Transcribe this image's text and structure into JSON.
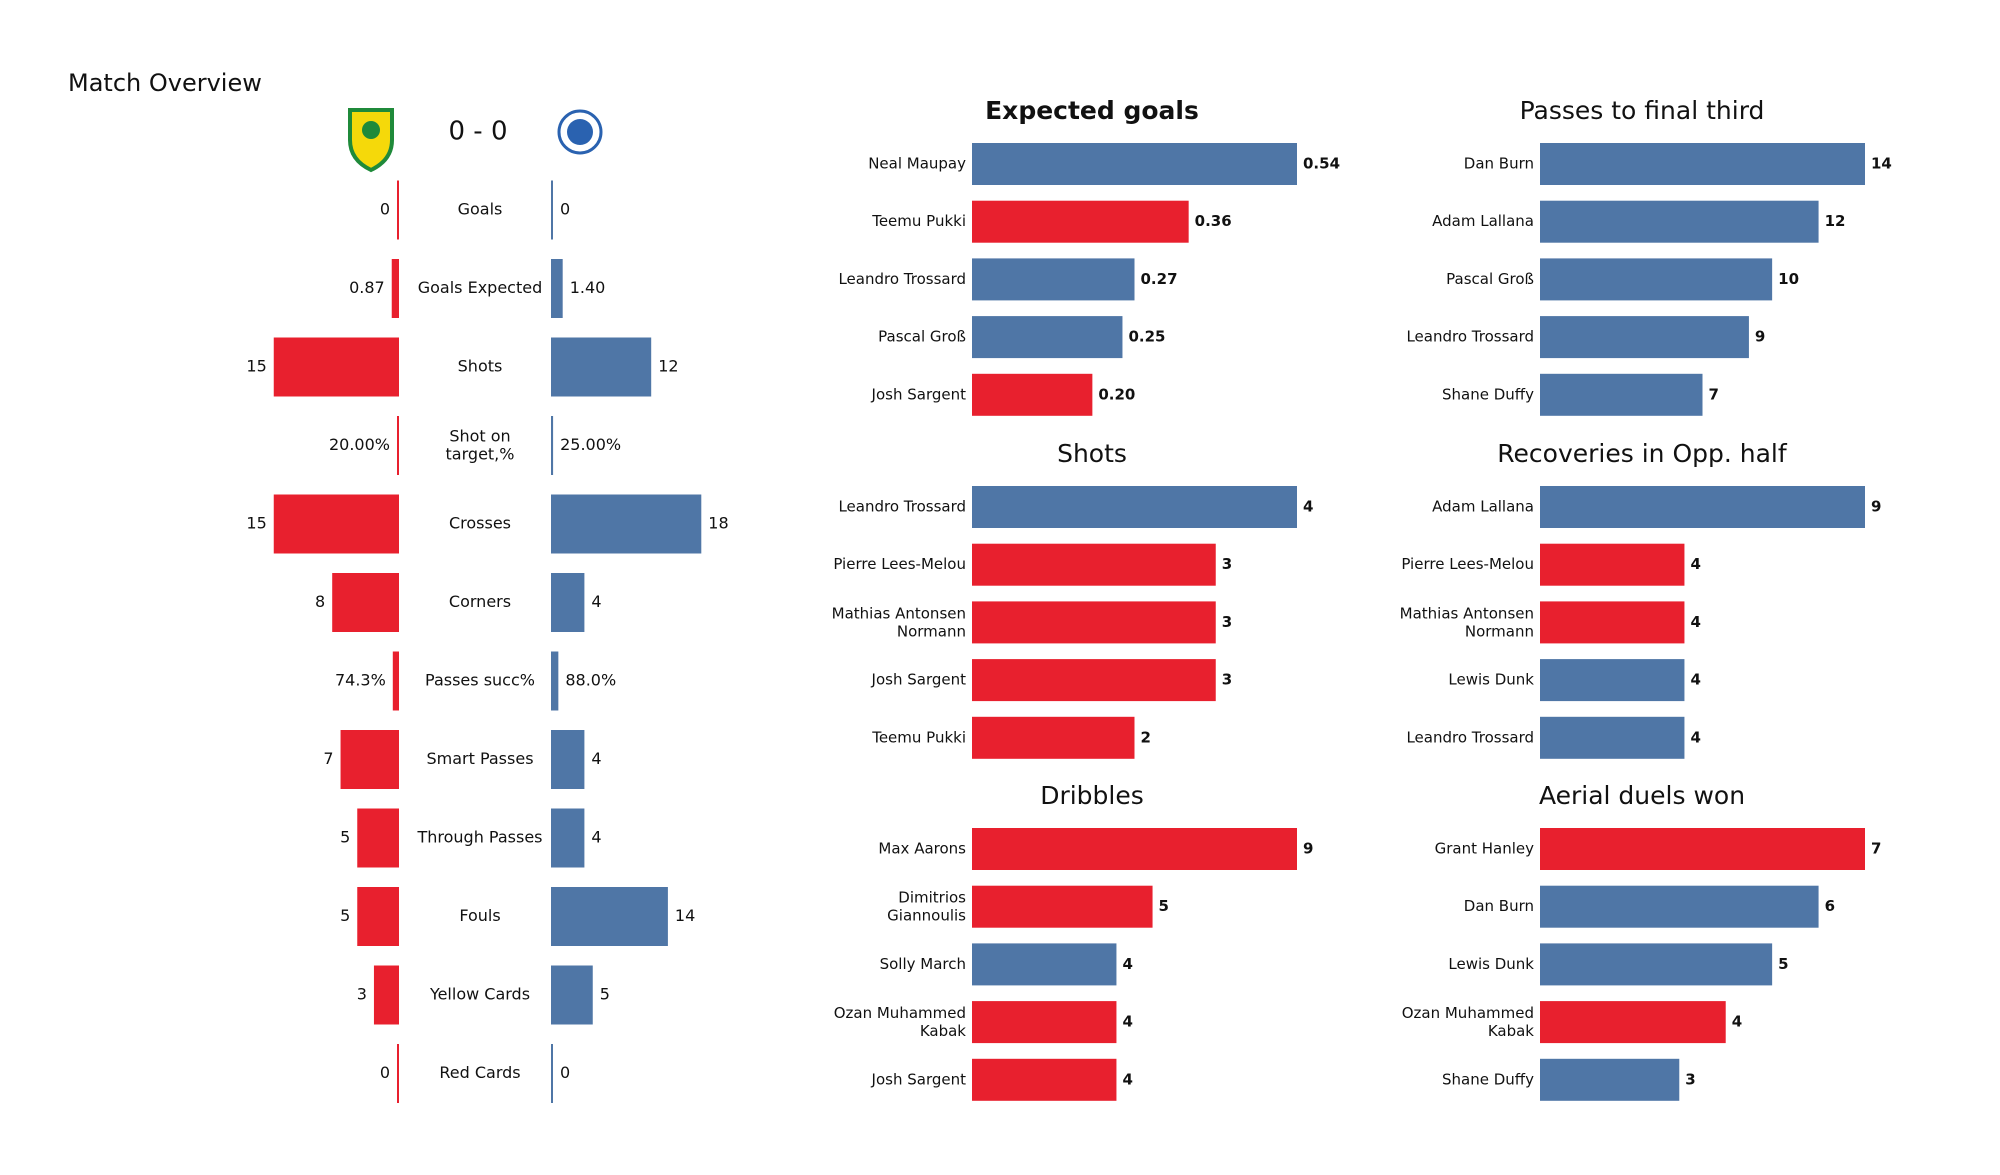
{
  "chart_data": [
    {
      "type": "comparison",
      "title": "Match Overview",
      "score": "0 - 0",
      "categories": [
        "Goals",
        "Goals Expected",
        "Shots",
        [
          "Shot on",
          "target,%"
        ],
        "Crosses",
        "Corners",
        "Passes succ%",
        "Smart Passes",
        "Through Passes",
        "Fouls",
        "Yellow Cards",
        "Red Cards"
      ],
      "series": [
        {
          "color": "#e8202e",
          "values": [
            0,
            0.87,
            15,
            0.2,
            15,
            8,
            0.743,
            7,
            5,
            5,
            3,
            0
          ],
          "value_labels": [
            "0",
            "0.87",
            "15",
            "20.00%",
            "15",
            "8",
            "74.3%",
            "7",
            "5",
            "5",
            "3",
            "0"
          ]
        },
        {
          "color": "#4f76a6",
          "values": [
            0,
            1.4,
            12,
            0.25,
            18,
            4,
            0.88,
            4,
            4,
            14,
            5,
            0
          ],
          "value_labels": [
            "0",
            "1.40",
            "12",
            "25.00%",
            "18",
            "4",
            "88.0%",
            "4",
            "4",
            "14",
            "5",
            "0"
          ]
        }
      ]
    },
    {
      "type": "hbar",
      "title": "Expected goals",
      "categories": [
        "Neal Maupay",
        "Teemu Pukki",
        "Leandro Trossard",
        "Pascal Groß",
        "Josh Sargent"
      ],
      "values": [
        0.54,
        0.36,
        0.27,
        0.25,
        0.2
      ],
      "value_labels": [
        "0.54",
        "0.36",
        "0.27",
        "0.25",
        "0.20"
      ],
      "colors": [
        "#4f76a6",
        "#e8202e",
        "#4f76a6",
        "#4f76a6",
        "#e8202e"
      ]
    },
    {
      "type": "hbar",
      "title": "Passes to final third",
      "categories": [
        "Dan Burn",
        "Adam Lallana",
        "Pascal Groß",
        "Leandro Trossard",
        "Shane Duffy"
      ],
      "values": [
        14,
        12,
        10,
        9,
        7
      ],
      "colors": [
        "#4f76a6",
        "#4f76a6",
        "#4f76a6",
        "#4f76a6",
        "#4f76a6"
      ]
    },
    {
      "type": "hbar",
      "title": "Shots",
      "categories": [
        "Leandro Trossard",
        "Pierre Lees-Melou",
        [
          "Mathias  Antonsen",
          "Normann"
        ],
        "Josh Sargent",
        "Teemu Pukki"
      ],
      "values": [
        4,
        3,
        3,
        3,
        2
      ],
      "colors": [
        "#4f76a6",
        "#e8202e",
        "#e8202e",
        "#e8202e",
        "#e8202e"
      ]
    },
    {
      "type": "hbar",
      "title": "Recoveries in Opp. half",
      "categories": [
        "Adam Lallana",
        "Pierre Lees-Melou",
        [
          "Mathias  Antonsen",
          "Normann"
        ],
        "Lewis Dunk",
        "Leandro Trossard"
      ],
      "values": [
        9,
        4,
        4,
        4,
        4
      ],
      "colors": [
        "#4f76a6",
        "#e8202e",
        "#e8202e",
        "#4f76a6",
        "#4f76a6"
      ]
    },
    {
      "type": "hbar",
      "title": "Dribbles",
      "categories": [
        "Max Aarons",
        [
          "Dimitrios",
          "Giannoulis"
        ],
        "Solly March",
        [
          "Ozan Muhammed",
          "Kabak"
        ],
        "Josh Sargent"
      ],
      "values": [
        9,
        5,
        4,
        4,
        4
      ],
      "colors": [
        "#e8202e",
        "#e8202e",
        "#4f76a6",
        "#e8202e",
        "#e8202e"
      ]
    },
    {
      "type": "hbar",
      "title": "Aerial duels won",
      "categories": [
        "Grant Hanley",
        "Dan Burn",
        "Lewis Dunk",
        [
          "Ozan Muhammed",
          "Kabak"
        ],
        "Shane Duffy"
      ],
      "values": [
        7,
        6,
        5,
        4,
        3
      ],
      "colors": [
        "#e8202e",
        "#4f76a6",
        "#4f76a6",
        "#e8202e",
        "#4f76a6"
      ]
    }
  ]
}
